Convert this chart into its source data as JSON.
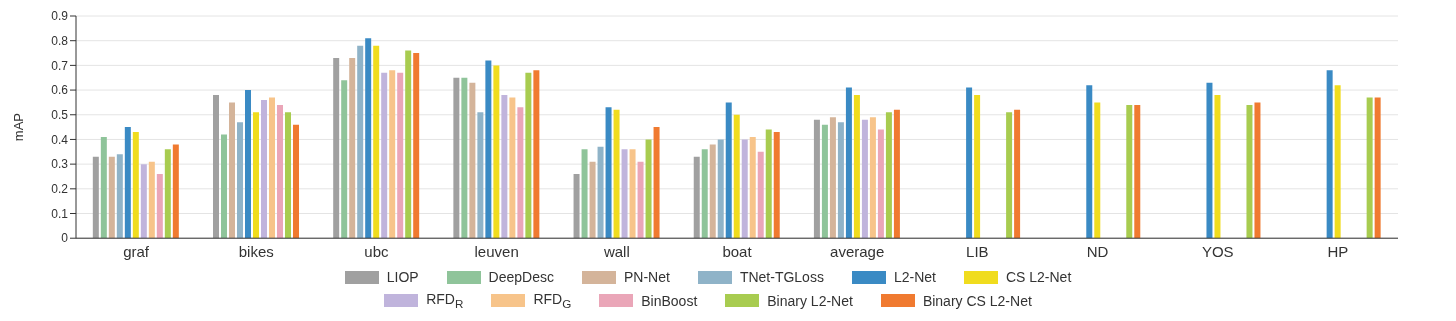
{
  "chart_data": {
    "type": "bar",
    "ylabel": "mAP",
    "categories": [
      "graf",
      "bikes",
      "ubc",
      "leuven",
      "wall",
      "boat",
      "average",
      "LIB",
      "ND",
      "YOS",
      "HP"
    ],
    "ylim": [
      0,
      0.9
    ],
    "yticks": [
      0,
      0.1,
      0.2,
      0.3,
      0.4,
      0.5,
      0.6,
      0.7,
      0.8,
      0.9
    ],
    "grid": "y",
    "legend": "bottom",
    "series": [
      {
        "name": "LIOP",
        "color": "#a0a0a0",
        "values": [
          0.33,
          0.58,
          0.73,
          0.65,
          0.26,
          0.33,
          0.48,
          null,
          null,
          null,
          null
        ]
      },
      {
        "name": "DeepDesc",
        "color": "#8fc49a",
        "values": [
          0.41,
          0.42,
          0.64,
          0.65,
          0.36,
          0.36,
          0.46,
          null,
          null,
          null,
          null
        ]
      },
      {
        "name": "PN-Net",
        "color": "#d4b49a",
        "values": [
          0.33,
          0.55,
          0.73,
          0.63,
          0.31,
          0.38,
          0.49,
          null,
          null,
          null,
          null
        ]
      },
      {
        "name": "TNet-TGLoss",
        "color": "#8fb3c8",
        "values": [
          0.34,
          0.47,
          0.78,
          0.51,
          0.37,
          0.4,
          0.47,
          null,
          null,
          null,
          null
        ]
      },
      {
        "name": "L2-Net",
        "color": "#3a8ac4",
        "values": [
          0.45,
          0.6,
          0.81,
          0.72,
          0.53,
          0.55,
          0.61,
          0.61,
          0.62,
          0.63,
          0.68
        ]
      },
      {
        "name": "CS L2-Net",
        "color": "#f0dc1e",
        "values": [
          0.43,
          0.51,
          0.78,
          0.7,
          0.52,
          0.5,
          0.58,
          0.58,
          0.55,
          0.58,
          0.62
        ]
      },
      {
        "name": "RFD$_{R}$",
        "color": "#c0b4dc",
        "values": [
          0.3,
          0.56,
          0.67,
          0.58,
          0.36,
          0.4,
          0.48,
          null,
          null,
          null,
          null
        ]
      },
      {
        "name": "RFD$_{G}$",
        "color": "#f7c48a",
        "values": [
          0.31,
          0.57,
          0.68,
          0.57,
          0.36,
          0.41,
          0.49,
          null,
          null,
          null,
          null
        ]
      },
      {
        "name": "BinBoost",
        "color": "#eaa6b8",
        "values": [
          0.26,
          0.54,
          0.67,
          0.53,
          0.31,
          0.35,
          0.44,
          null,
          null,
          null,
          null
        ]
      },
      {
        "name": "Binary L2-Net",
        "color": "#a8cc50",
        "values": [
          0.36,
          0.51,
          0.76,
          0.67,
          0.4,
          0.44,
          0.51,
          0.51,
          0.54,
          0.54,
          0.57
        ]
      },
      {
        "name": "Binary CS L2-Net",
        "color": "#f07a30",
        "values": [
          0.38,
          0.46,
          0.75,
          0.68,
          0.45,
          0.43,
          0.52,
          0.52,
          0.54,
          0.55,
          0.57
        ]
      }
    ]
  }
}
